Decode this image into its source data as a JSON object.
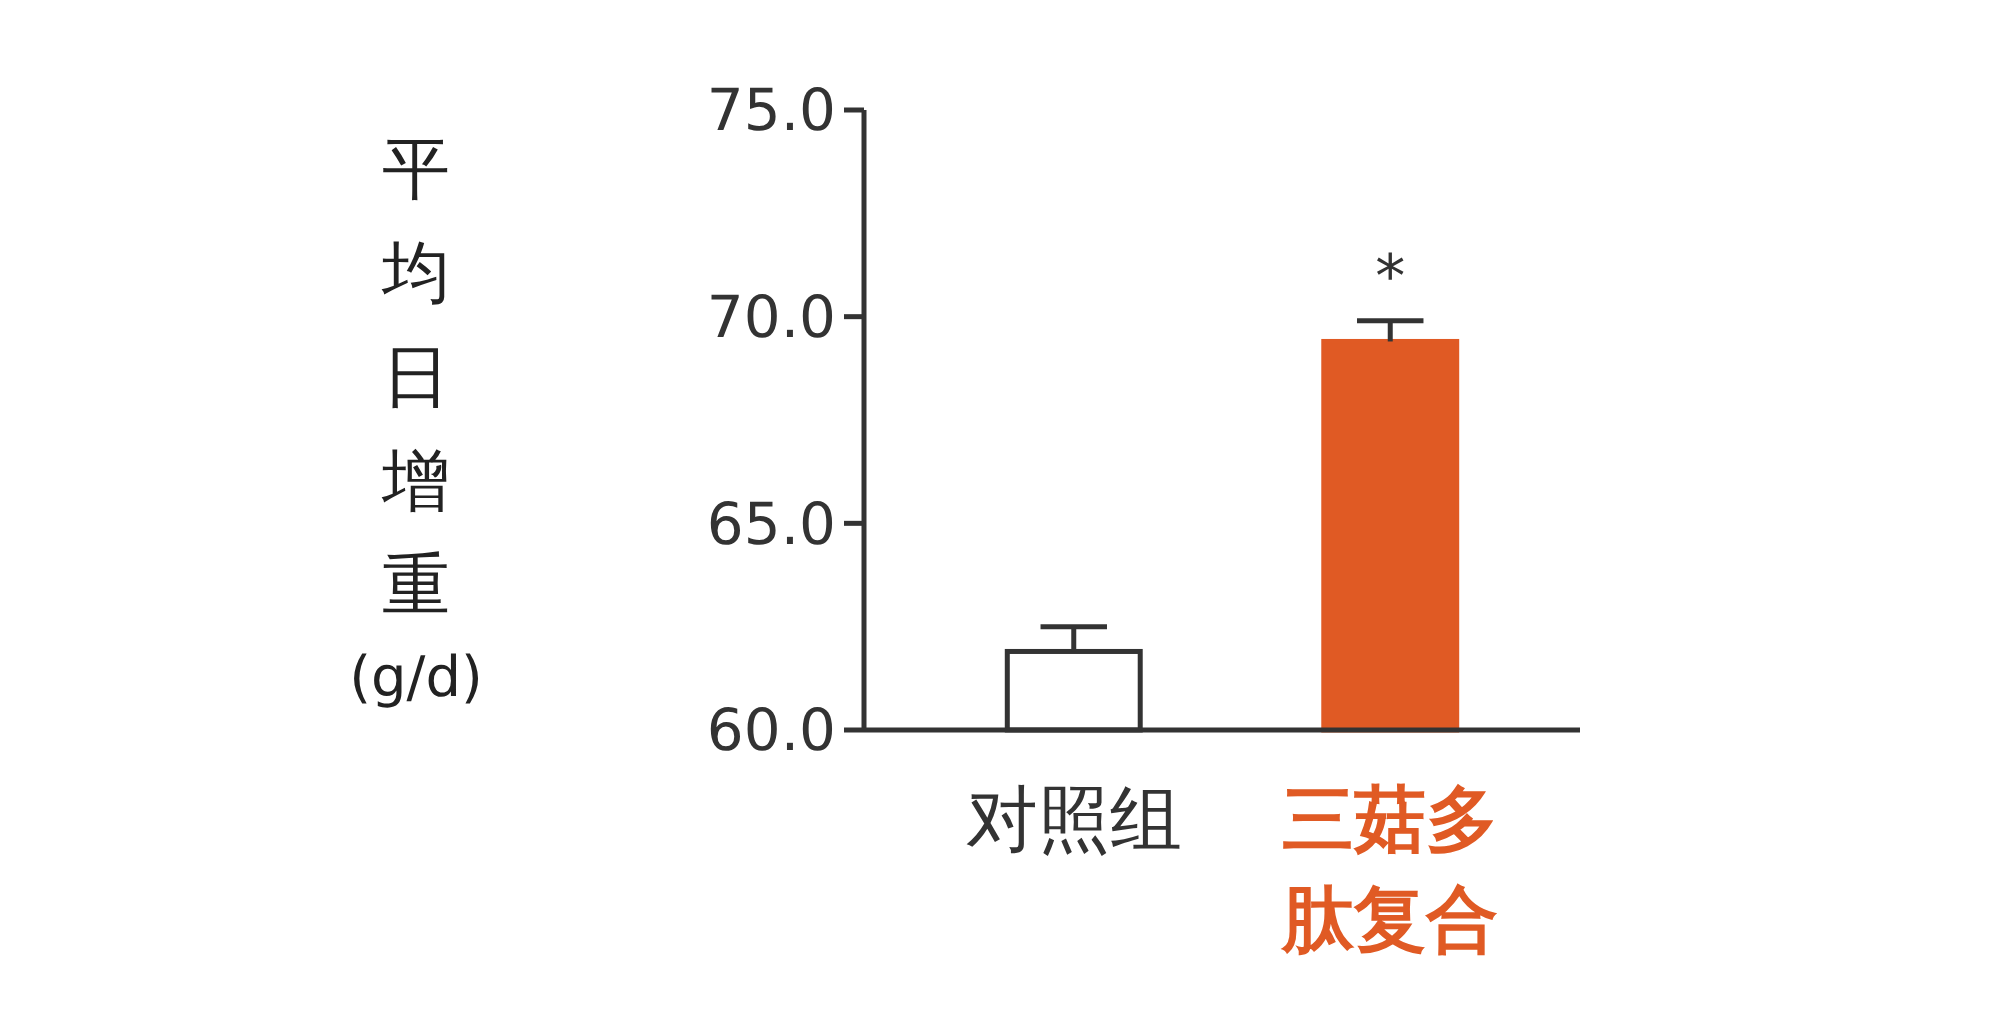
{
  "chart_data": {
    "type": "bar",
    "ylabel": "平均日增重(g/d)",
    "categories": [
      "对照组",
      "三菇多肽复合"
    ],
    "values": [
      61.9,
      69.4
    ],
    "colors": [
      "#ffffff",
      "#e05a24"
    ],
    "errors": [
      [
        61.9,
        62.5
      ],
      [
        69.4,
        69.9
      ]
    ],
    "ylim": [
      60,
      75
    ],
    "yticks": [
      {
        "value": 60,
        "label": "60.0"
      },
      {
        "value": 65,
        "label": "65.0"
      },
      {
        "value": 70,
        "label": "70.0"
      },
      {
        "value": 75,
        "label": "75.0"
      }
    ],
    "annotations": [
      {
        "text": "*",
        "x": "三菇多肽复合",
        "y": 69.9
      }
    ],
    "grid": false
  }
}
